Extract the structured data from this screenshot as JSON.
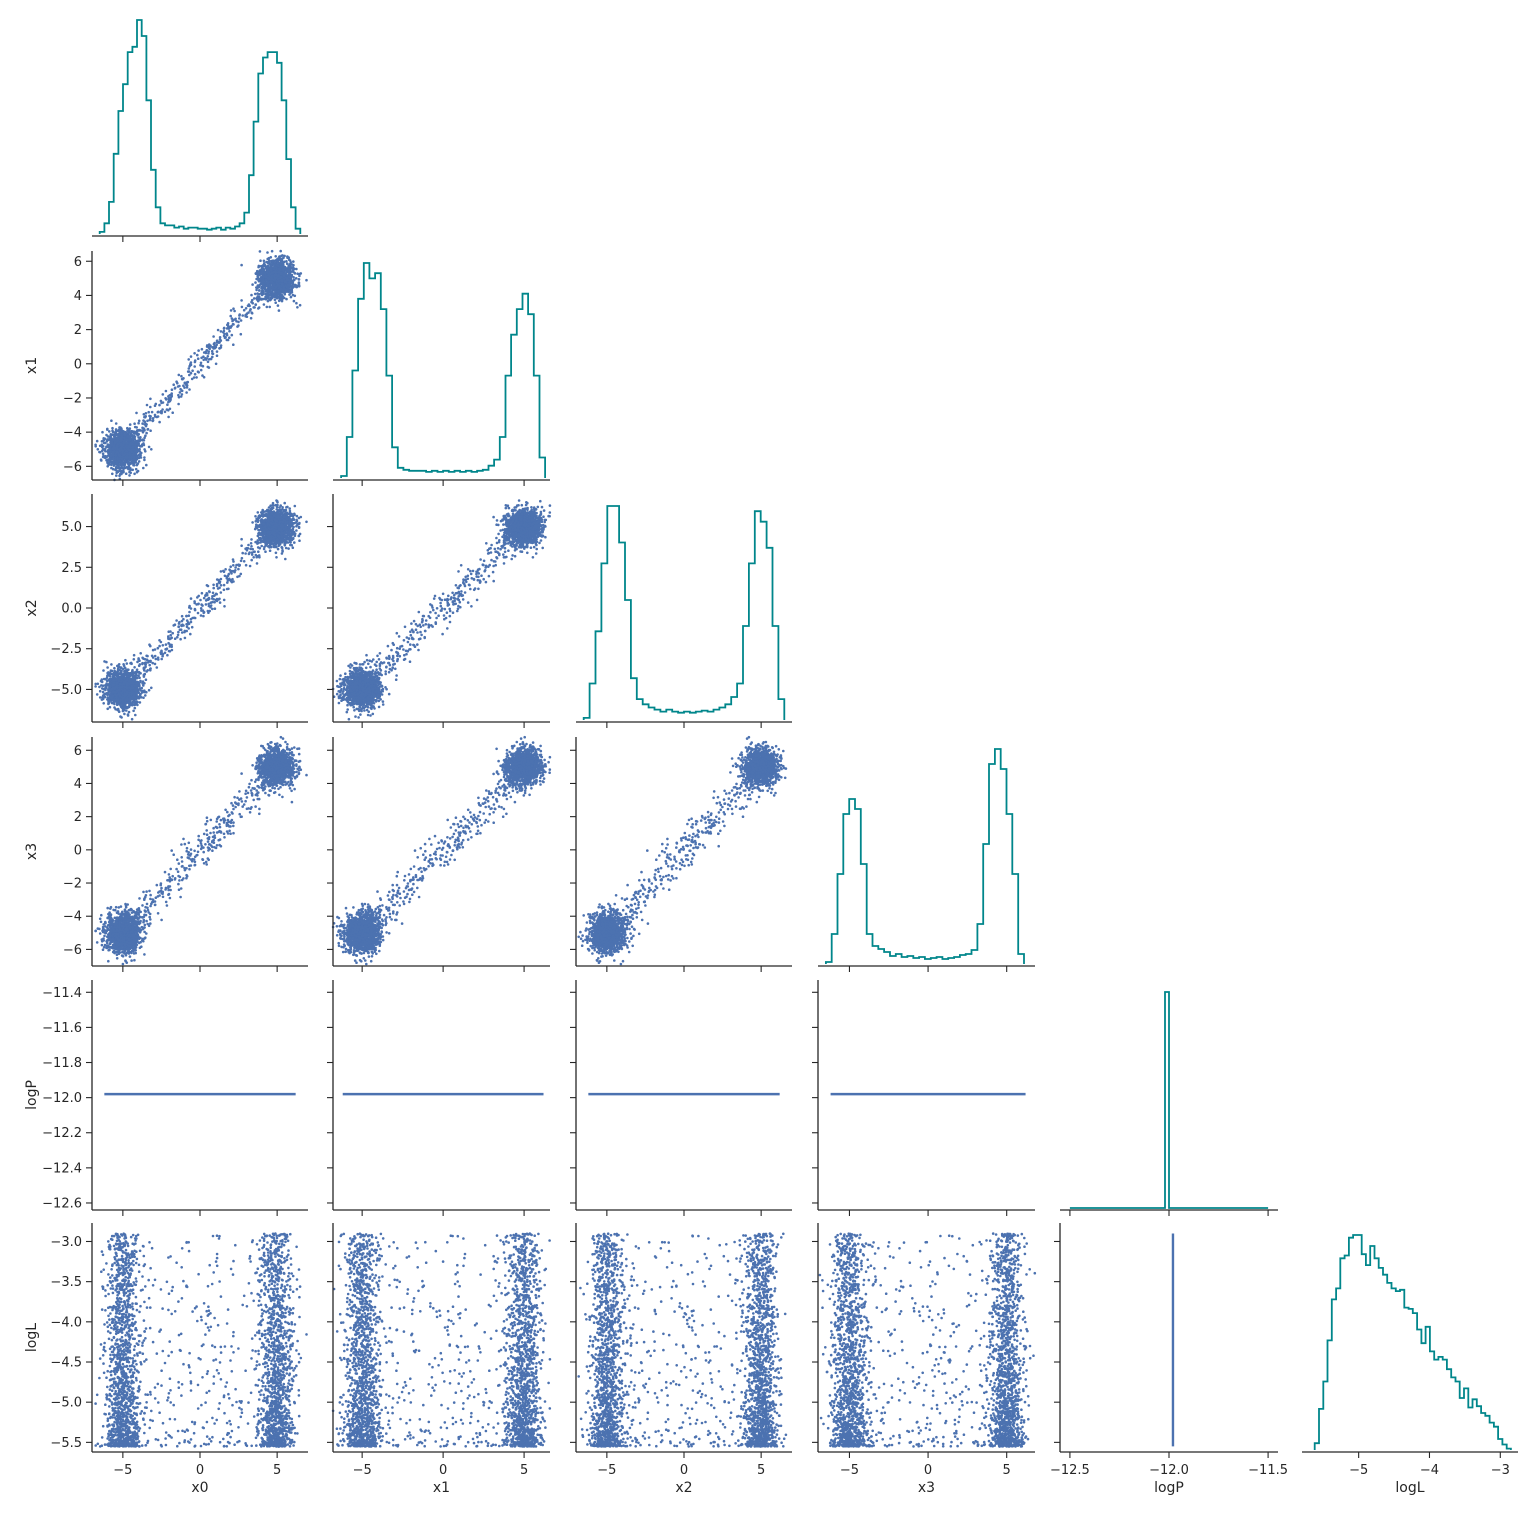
{
  "chart_data": {
    "type": "scatter",
    "layout": "corner-pairplot",
    "title": "",
    "variables": [
      "x0",
      "x1",
      "x2",
      "x3",
      "logP",
      "logL"
    ],
    "colors": {
      "histogram": "#00868b",
      "scatter": "#4c72b0"
    },
    "grid": false,
    "axes": {
      "x0": {
        "range": [
          -7,
          7
        ],
        "ticks": [
          -5,
          0,
          5
        ],
        "tick_labels": [
          "−5",
          "0",
          "5"
        ]
      },
      "x1": {
        "range": [
          -6.8,
          6.6
        ],
        "ticks": [
          -6,
          -4,
          -2,
          0,
          2,
          4,
          6
        ],
        "tick_labels": [
          "−6",
          "−4",
          "−2",
          "0",
          "2",
          "4",
          "6"
        ],
        "x_ticks": [
          -5,
          0,
          5
        ],
        "x_tick_labels": [
          "−5",
          "0",
          "5"
        ]
      },
      "x2": {
        "range": [
          -7.0,
          7.0
        ],
        "ticks": [
          -5.0,
          -2.5,
          0.0,
          2.5,
          5.0
        ],
        "tick_labels": [
          "−5.0",
          "−2.5",
          "0.0",
          "2.5",
          "5.0"
        ],
        "x_ticks": [
          -5,
          0,
          5
        ],
        "x_tick_labels": [
          "−5",
          "0",
          "5"
        ]
      },
      "x3": {
        "range": [
          -7.0,
          6.8
        ],
        "ticks": [
          -6,
          -4,
          -2,
          0,
          2,
          4,
          6
        ],
        "tick_labels": [
          "−6",
          "−4",
          "−2",
          "0",
          "2",
          "4",
          "6"
        ],
        "x_ticks": [
          -5,
          0,
          5
        ],
        "x_tick_labels": [
          "−5",
          "0",
          "5"
        ]
      },
      "logP": {
        "range": [
          -12.64,
          -11.33
        ],
        "ticks": [
          -12.6,
          -12.4,
          -12.2,
          -12.0,
          -11.8,
          -11.6,
          -11.4
        ],
        "tick_labels": [
          "−12.6",
          "−12.4",
          "−12.2",
          "−12.0",
          "−11.8",
          "−11.6",
          "−11.4"
        ],
        "x_range": [
          -12.55,
          -11.45
        ],
        "x_ticks": [
          -12.5,
          -12.0,
          -11.5
        ],
        "x_tick_labels": [
          "−12.5",
          "−12.0",
          "−11.5"
        ]
      },
      "logL": {
        "range": [
          -5.62,
          -2.77
        ],
        "ticks": [
          -5.5,
          -5.0,
          -4.5,
          -4.0,
          -3.5,
          -3.0
        ],
        "tick_labels": [
          "−5.5",
          "−5.0",
          "−4.5",
          "−4.0",
          "−3.5",
          "−3.0"
        ],
        "x_range": [
          -5.8,
          -2.75
        ],
        "x_ticks": [
          -5,
          -4,
          -3
        ],
        "x_tick_labels": [
          "−5",
          "−4",
          "−3"
        ]
      }
    },
    "histograms": {
      "x0": {
        "edges": [
          -6.5,
          6.5
        ],
        "counts": [
          2,
          10,
          30,
          75,
          115,
          140,
          170,
          175,
          200,
          185,
          125,
          60,
          25,
          10,
          8,
          8,
          6,
          7,
          5,
          6,
          6,
          5,
          5,
          4,
          5,
          6,
          4,
          6,
          5,
          7,
          10,
          20,
          55,
          105,
          150,
          165,
          170,
          170,
          160,
          125,
          70,
          25,
          5
        ]
      },
      "x1": {
        "edges": [
          -6.3,
          6.3
        ],
        "counts": [
          2,
          40,
          105,
          175,
          210,
          195,
          200,
          165,
          100,
          30,
          10,
          8,
          7,
          7,
          7,
          6,
          7,
          6,
          7,
          6,
          7,
          6,
          7,
          6,
          7,
          8,
          12,
          18,
          40,
          100,
          140,
          165,
          180,
          160,
          100,
          20
        ]
      },
      "x2": {
        "edges": [
          -6.5,
          6.5
        ],
        "counts": [
          2,
          35,
          85,
          150,
          205,
          205,
          170,
          115,
          40,
          20,
          15,
          12,
          10,
          8,
          10,
          8,
          7,
          8,
          7,
          8,
          9,
          8,
          10,
          12,
          15,
          22,
          35,
          90,
          150,
          200,
          190,
          165,
          90,
          20
        ]
      },
      "x3": {
        "edges": [
          -6.5,
          6.1
        ],
        "counts": [
          2,
          30,
          90,
          150,
          165,
          155,
          100,
          30,
          18,
          15,
          12,
          8,
          10,
          7,
          8,
          6,
          7,
          5,
          6,
          7,
          5,
          6,
          7,
          9,
          10,
          14,
          40,
          120,
          200,
          215,
          195,
          150,
          90,
          10
        ]
      },
      "logP": {
        "edges": [
          -12.5,
          -11.5
        ],
        "counts": [
          0,
          0,
          0,
          0,
          0,
          0,
          0,
          0,
          0,
          0,
          0,
          0,
          0,
          0,
          0,
          0,
          0,
          0,
          0,
          0,
          0,
          0,
          0,
          0,
          600,
          0,
          0,
          0,
          0,
          0,
          0,
          0,
          0,
          0,
          0,
          0,
          0,
          0,
          0,
          0,
          0,
          0,
          0,
          0,
          0,
          0,
          0,
          0,
          0,
          0
        ]
      },
      "logL": {
        "edges": [
          -5.62,
          -2.85
        ],
        "counts": [
          5,
          30,
          50,
          80,
          110,
          118,
          140,
          142,
          155,
          157,
          157,
          143,
          135,
          149,
          140,
          133,
          128,
          122,
          118,
          116,
          117,
          104,
          103,
          100,
          88,
          78,
          90,
          72,
          66,
          68,
          66,
          59,
          53,
          50,
          38,
          45,
          31,
          37,
          32,
          27,
          25,
          20,
          17,
          8,
          4,
          1
        ]
      }
    },
    "scatter_model": {
      "modes": [
        -5,
        5
      ],
      "spread": 0.55,
      "bridge_fraction": 0.12,
      "logP_value": -11.98,
      "logL_range": [
        -5.55,
        -2.9
      ],
      "n_points": 3000
    }
  }
}
